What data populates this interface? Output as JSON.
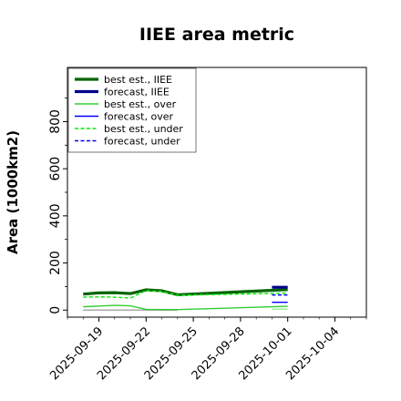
{
  "chart_data": {
    "type": "line",
    "title": "IIEE area metric",
    "xlabel": "",
    "ylabel": "Area (1000km2)",
    "ylim": [
      -30,
      1030
    ],
    "xlim": [
      "2025-09-17",
      "2025-10-06"
    ],
    "yticks": [
      0,
      200,
      400,
      600,
      800
    ],
    "xticks": [
      "2025-09-19",
      "2025-09-22",
      "2025-09-25",
      "2025-09-28",
      "2025-10-01",
      "2025-10-04"
    ],
    "highlighted_xtick": "2025-09-25",
    "highlight_color": "#228b22",
    "grid": false,
    "legend_position": "top-left",
    "series": [
      {
        "name": "best est., IIEE",
        "color": "#006400",
        "style": "solid",
        "width": "thick",
        "x": [
          "2025-09-18",
          "2025-09-19",
          "2025-09-20",
          "2025-09-21",
          "2025-09-22",
          "2025-09-23",
          "2025-09-24",
          "2025-10-01"
        ],
        "y": [
          68,
          73,
          74,
          70,
          86,
          82,
          65,
          87
        ]
      },
      {
        "name": "forecast, IIEE",
        "color": "#00008b",
        "style": "solid",
        "width": "thick",
        "x": [
          "2025-09-30",
          "2025-10-01"
        ],
        "y": [
          97,
          97
        ]
      },
      {
        "name": "best est., over",
        "color": "#32cd32",
        "style": "solid",
        "width": "thin",
        "x": [
          "2025-09-18",
          "2025-09-19",
          "2025-09-20",
          "2025-09-21",
          "2025-09-22",
          "2025-09-23",
          "2025-09-24",
          "2025-10-01"
        ],
        "y": [
          14,
          17,
          20,
          18,
          3,
          2,
          2,
          16
        ]
      },
      {
        "name": "forecast, over",
        "color": "#0000ff",
        "style": "solid",
        "width": "thin",
        "x": [
          "2025-09-30",
          "2025-10-01"
        ],
        "y": [
          33,
          33
        ]
      },
      {
        "name": "best est., under",
        "color": "#00ee00",
        "style": "dashed",
        "width": "thin",
        "x": [
          "2025-09-18",
          "2025-09-19",
          "2025-09-20",
          "2025-09-21",
          "2025-09-22",
          "2025-09-23",
          "2025-09-24",
          "2025-10-01"
        ],
        "y": [
          55,
          56,
          55,
          51,
          83,
          79,
          63,
          72
        ]
      },
      {
        "name": "forecast, under",
        "color": "#0000ff",
        "style": "dashed",
        "width": "thin",
        "x": [
          "2025-09-30",
          "2025-10-01"
        ],
        "y": [
          64,
          64
        ]
      }
    ],
    "reference_lines": [
      {
        "color": "#aaaaaa",
        "x": [
          "2025-09-18",
          "2025-09-19",
          "2025-09-20",
          "2025-09-21",
          "2025-09-22",
          "2025-09-23",
          "2025-09-24"
        ],
        "y": [
          0,
          0,
          0,
          0,
          0,
          0,
          0
        ]
      },
      {
        "color": "#90ee90",
        "x": [
          "2025-09-30",
          "2025-10-01"
        ],
        "y": [
          4,
          4
        ]
      }
    ]
  }
}
